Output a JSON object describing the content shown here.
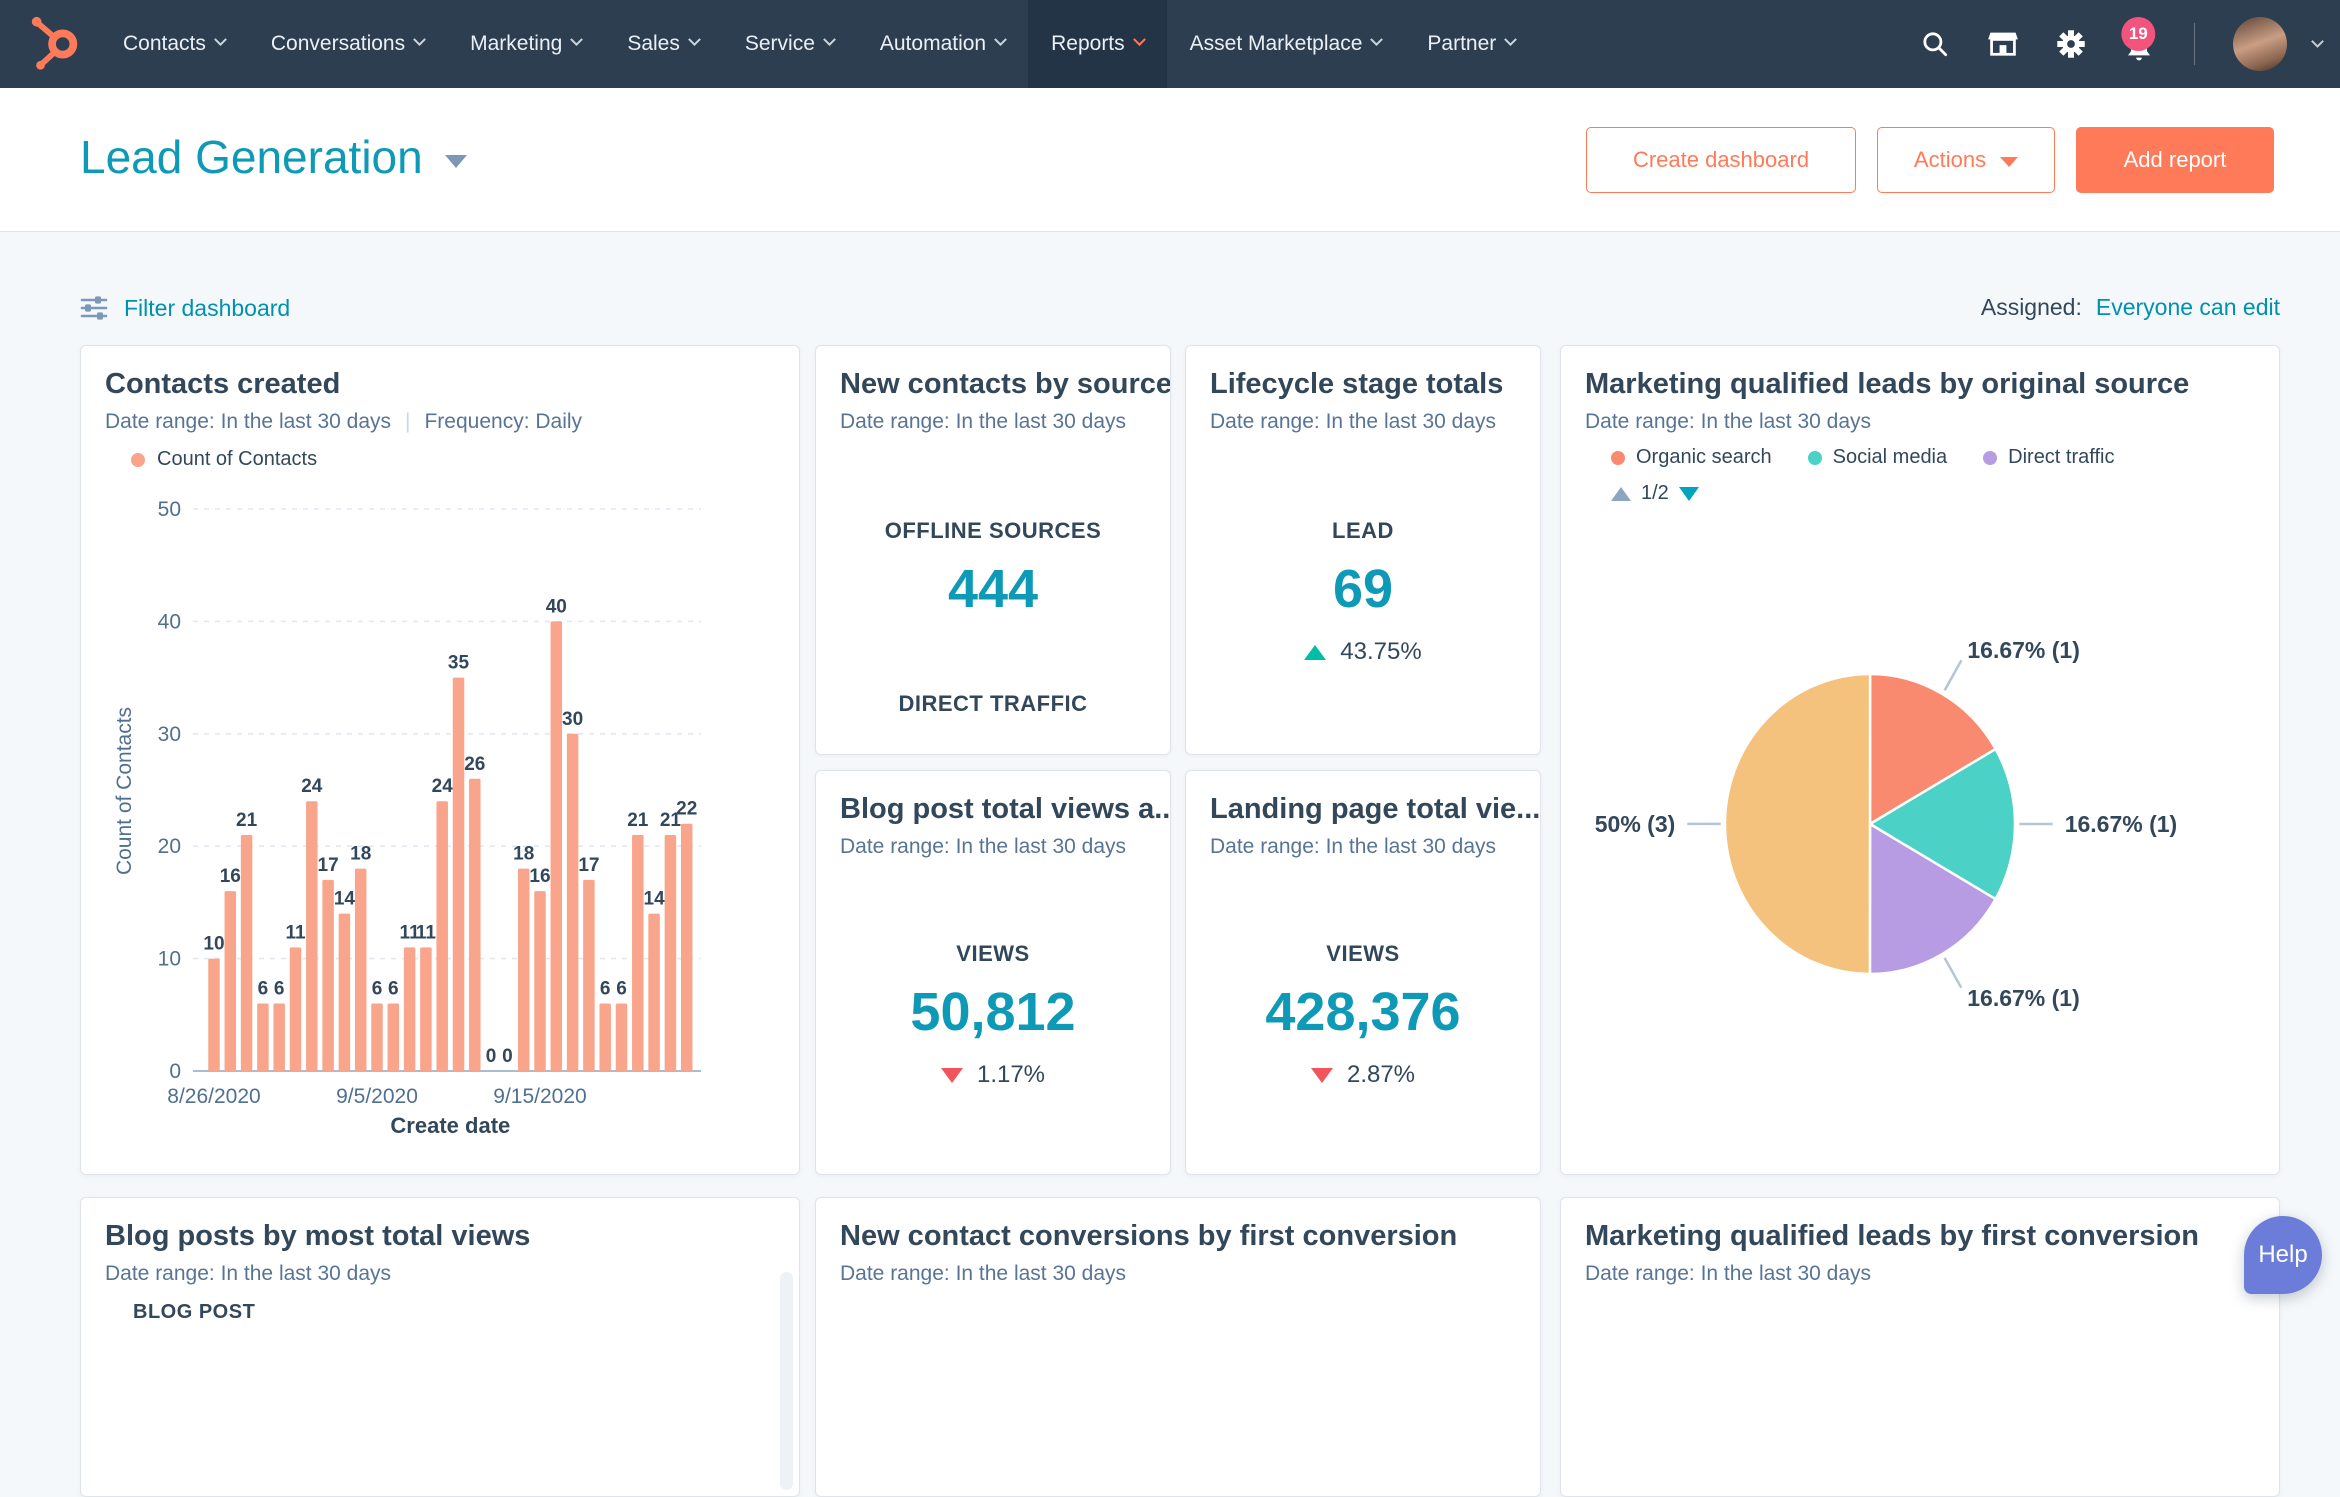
{
  "nav": {
    "items": [
      {
        "label": "Contacts"
      },
      {
        "label": "Conversations"
      },
      {
        "label": "Marketing"
      },
      {
        "label": "Sales"
      },
      {
        "label": "Service"
      },
      {
        "label": "Automation"
      },
      {
        "label": "Reports",
        "active": true
      },
      {
        "label": "Asset Marketplace"
      },
      {
        "label": "Partner"
      }
    ],
    "badge_count": "19",
    "icons": [
      "search-icon",
      "marketplace-icon",
      "settings-icon",
      "notifications-icon",
      "user-avatar",
      "chevron-down-icon"
    ]
  },
  "header": {
    "title": "Lead Generation",
    "create_dashboard_label": "Create dashboard",
    "actions_label": "Actions",
    "add_report_label": "Add report"
  },
  "toolbar": {
    "filter_label": "Filter dashboard",
    "assigned_label": "Assigned:",
    "assigned_value": "Everyone can edit"
  },
  "cards": {
    "contacts_created": {
      "title": "Contacts created",
      "date_range": "Date range: In the last 30 days",
      "frequency": "Frequency: Daily",
      "legend": "Count of Contacts"
    },
    "new_contacts_by_source": {
      "title": "New contacts by source",
      "date_range": "Date range: In the last 30 days",
      "stat_label": "OFFLINE SOURCES",
      "stat_value": "444",
      "next_label": "DIRECT TRAFFIC"
    },
    "lifecycle": {
      "title": "Lifecycle stage totals",
      "date_range": "Date range: In the last 30 days",
      "stat_label": "LEAD",
      "stat_value": "69",
      "delta": "43.75%",
      "delta_direction": "up"
    },
    "mql_original": {
      "title": "Marketing qualified leads by original source",
      "date_range": "Date range: In the last 30 days",
      "pager": "1/2"
    },
    "blog_views": {
      "title": "Blog post total views a...",
      "date_range": "Date range: In the last 30 days",
      "stat_label": "VIEWS",
      "stat_value": "50,812",
      "delta": "1.17%",
      "delta_direction": "down"
    },
    "landing_views": {
      "title": "Landing page total vie...",
      "date_range": "Date range: In the last 30 days",
      "stat_label": "VIEWS",
      "stat_value": "428,376",
      "delta": "2.87%",
      "delta_direction": "down"
    },
    "blog_posts_table": {
      "title": "Blog posts by most total views",
      "date_range": "Date range: In the last 30 days",
      "column_header": "BLOG POST"
    },
    "contact_conversions": {
      "title": "New contact conversions by first conversion",
      "date_range": "Date range: In the last 30 days"
    },
    "mql_first": {
      "title": "Marketing qualified leads by first conversion",
      "date_range": "Date range: In the last 30 days"
    }
  },
  "help_label": "Help",
  "colors": {
    "nav_bg": "#2d3e50",
    "accent_orange": "#ff7a59",
    "teal_link": "#0091ae",
    "stat_teal": "#0e9ab6",
    "text_dark": "#33475b",
    "text_sub": "#587495",
    "positive": "#00bda5",
    "negative": "#f2545b",
    "badge_pink": "#f2547d",
    "help_purple": "#6b7cd9"
  },
  "chart_data": [
    {
      "type": "bar",
      "title": "Contacts created",
      "series_name": "Count of Contacts",
      "xlabel": "Create date",
      "ylabel": "Count of Contacts",
      "values": [
        10,
        16,
        21,
        6,
        6,
        11,
        24,
        17,
        14,
        18,
        6,
        6,
        11,
        11,
        24,
        35,
        26,
        0,
        0,
        18,
        16,
        40,
        30,
        17,
        6,
        6,
        21,
        14,
        21,
        22
      ],
      "x_ticks": [
        {
          "index": 0,
          "label": "8/26/2020"
        },
        {
          "index": 10,
          "label": "9/5/2020"
        },
        {
          "index": 20,
          "label": "9/15/2020"
        }
      ],
      "y_ticks": [
        0,
        10,
        20,
        30,
        40,
        50
      ],
      "ylim": [
        0,
        50
      ],
      "grid": "dashed horizontal",
      "bar_color": "#f8a58c",
      "data_labels": true
    },
    {
      "type": "pie",
      "title": "Marketing qualified leads by original source",
      "legend_position": "top",
      "legend_pager": "1/2",
      "slices": [
        {
          "label": "Organic search",
          "pct": 16.67,
          "count": 1,
          "display": "16.67% (1)",
          "color": "#f98a70"
        },
        {
          "label": "Social media",
          "pct": 16.67,
          "count": 1,
          "display": "16.67% (1)",
          "color": "#4bd1c5"
        },
        {
          "label": "Direct traffic",
          "pct": 16.67,
          "count": 1,
          "display": "16.67% (1)",
          "color": "#b79ce4"
        },
        {
          "label": "",
          "pct": 50,
          "count": 3,
          "display": "50% (3)",
          "color": "#f4c27d"
        }
      ]
    }
  ]
}
